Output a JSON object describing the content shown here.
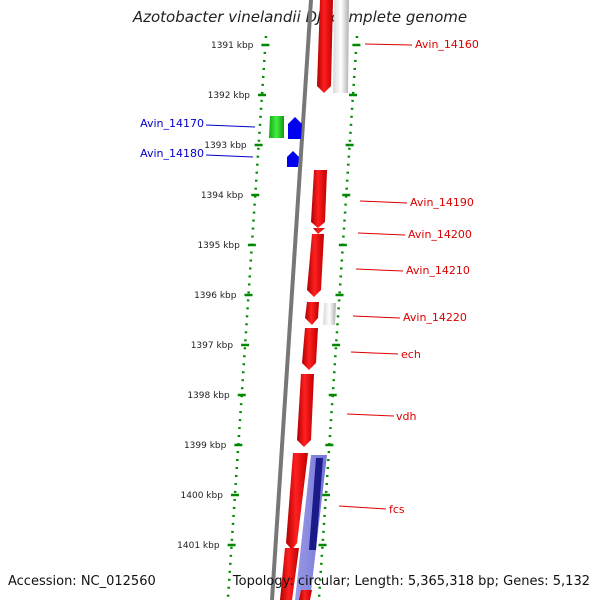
{
  "title": "Azotobacter vinelandii DJ, complete genome",
  "footer": {
    "accession": "Accession: NC_012560",
    "summary": "Topology: circular; Length: 5,365,318 bp; Genes: 5,132"
  },
  "colors": {
    "forward_gene": "#ff0000",
    "reverse_gene": "#0000ee",
    "rna": "#22cc22",
    "pseudo": "#c8c8c8",
    "ruler": "#008800",
    "backbone": "#777777"
  },
  "ruler_ticks": [
    "1391 kbp",
    "1392 kbp",
    "1393 kbp",
    "1394 kbp",
    "1395 kbp",
    "1396 kbp",
    "1397 kbp",
    "1398 kbp",
    "1399 kbp",
    "1400 kbp",
    "1401 kbp"
  ],
  "left_labels": [
    {
      "text": "Avin_14170",
      "color": "#0000cc"
    },
    {
      "text": "Avin_14180",
      "color": "#0000cc"
    }
  ],
  "right_labels": [
    {
      "text": "Avin_14160",
      "color": "#dd0000"
    },
    {
      "text": "Avin_14190",
      "color": "#dd0000"
    },
    {
      "text": "Avin_14200",
      "color": "#dd0000"
    },
    {
      "text": "Avin_14210",
      "color": "#dd0000"
    },
    {
      "text": "Avin_14220",
      "color": "#dd0000"
    },
    {
      "text": "ech",
      "color": "#dd0000"
    },
    {
      "text": "vdh",
      "color": "#dd0000"
    },
    {
      "text": "fcs",
      "color": "#dd0000"
    }
  ]
}
